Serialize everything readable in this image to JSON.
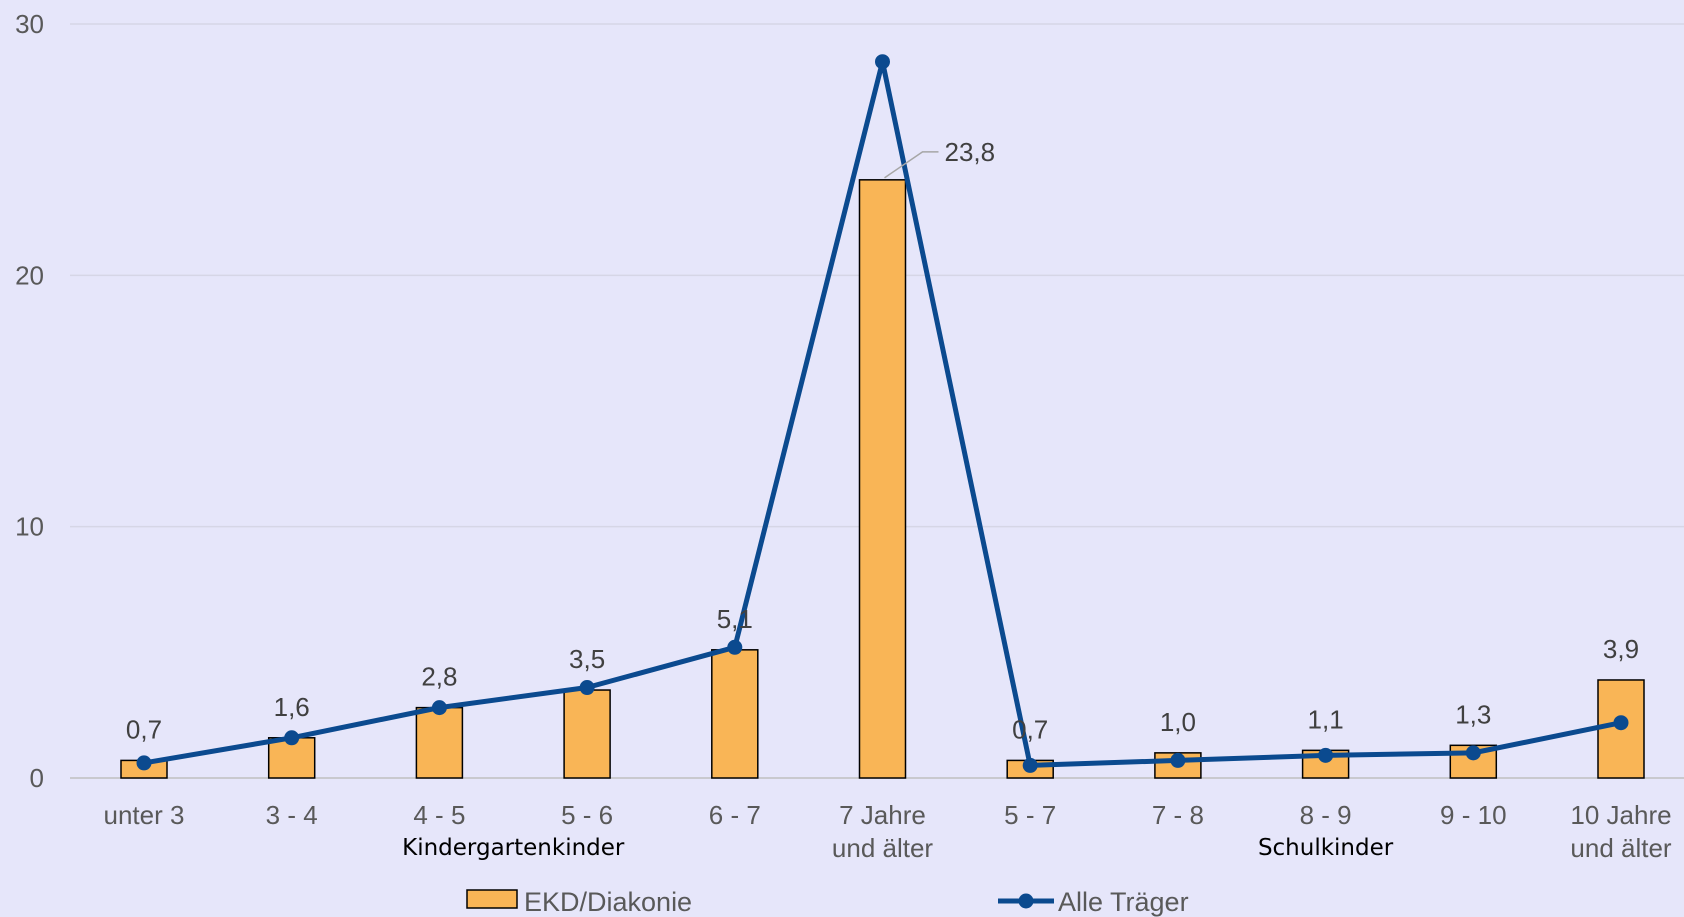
{
  "chart_data": {
    "type": "bar",
    "categories": [
      [
        "unter 3"
      ],
      [
        "3 - 4"
      ],
      [
        "4 - 5"
      ],
      [
        "5 - 6"
      ],
      [
        "6 - 7"
      ],
      [
        "7 Jahre",
        "und älter"
      ],
      [
        "5 - 7"
      ],
      [
        "7 - 8"
      ],
      [
        "8 - 9"
      ],
      [
        "9 - 10"
      ],
      [
        "10 Jahre",
        "und älter"
      ]
    ],
    "groups": [
      {
        "label": "Kindergartenkinder",
        "start": 0,
        "end": 5
      },
      {
        "label": "Schulkinder",
        "start": 6,
        "end": 10
      }
    ],
    "series": [
      {
        "name": "EKD/Diakonie",
        "type": "bar",
        "color": "#F9B556",
        "values": [
          0.7,
          1.6,
          2.8,
          3.5,
          5.1,
          23.8,
          0.7,
          1.0,
          1.1,
          1.3,
          3.9
        ],
        "labels": [
          "0,7",
          "1,6",
          "2,8",
          "3,5",
          "5,1",
          "23,8",
          "0,7",
          "1,0",
          "1,1",
          "1,3",
          "3,9"
        ]
      },
      {
        "name": "Alle Träger",
        "type": "line",
        "color": "#0B4A8F",
        "values": [
          0.6,
          1.6,
          2.8,
          3.6,
          5.2,
          28.5,
          0.5,
          0.7,
          0.9,
          1.0,
          2.2
        ]
      }
    ],
    "yticks": [
      "0",
      "10",
      "20",
      "30"
    ],
    "ylim": [
      0,
      30
    ],
    "grid": true,
    "legend": "bottom",
    "title": "",
    "xlabel": "",
    "ylabel": ""
  }
}
